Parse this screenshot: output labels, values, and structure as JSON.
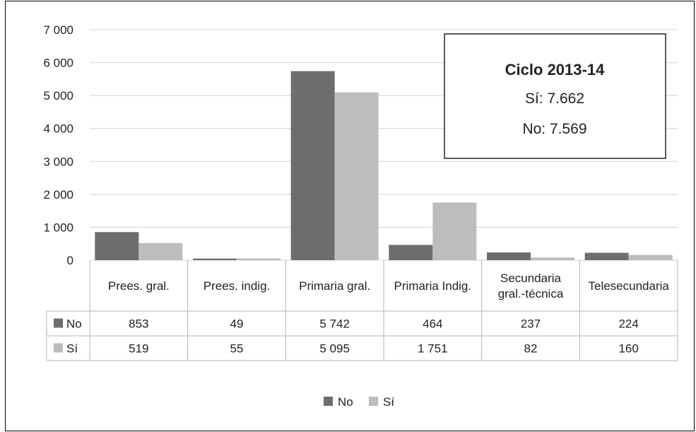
{
  "chart_data": {
    "type": "bar",
    "categories": [
      "Prees. gral.",
      "Prees. indig.",
      "Primaria gral.",
      "Primaria Indig.",
      "Secundaria gral.-técnica",
      "Telesecundaria"
    ],
    "category_lines": [
      [
        "Prees. gral."
      ],
      [
        "Prees. indig."
      ],
      [
        "Primaria gral."
      ],
      [
        "Primaria Indig."
      ],
      [
        "Secundaria",
        "gral.-técnica"
      ],
      [
        "Telesecundaria"
      ]
    ],
    "series": [
      {
        "name": "No",
        "values": [
          853,
          49,
          5742,
          464,
          237,
          224
        ],
        "labels": [
          "853",
          "49",
          "5 742",
          "464",
          "237",
          "224"
        ],
        "color": "#6d6d6d"
      },
      {
        "name": "Sí",
        "values": [
          519,
          55,
          5095,
          1751,
          82,
          160
        ],
        "labels": [
          "519",
          "55",
          "5 095",
          "1 751",
          "82",
          "160"
        ],
        "color": "#bdbdbd"
      }
    ],
    "ylim": [
      0,
      7000
    ],
    "yticks": [
      0,
      1000,
      2000,
      3000,
      4000,
      5000,
      6000,
      7000
    ],
    "ytick_labels": [
      "0",
      "1 000",
      "2 000",
      "3 000",
      "4 000",
      "5 000",
      "6 000",
      "7 000"
    ],
    "grid": true,
    "legend_position": "bottom",
    "data_table": true,
    "annotation": {
      "title": "Ciclo 2013-14",
      "lines": [
        "Sí: 7.662",
        "No: 7.569"
      ]
    },
    "title": "",
    "xlabel": "",
    "ylabel": ""
  }
}
